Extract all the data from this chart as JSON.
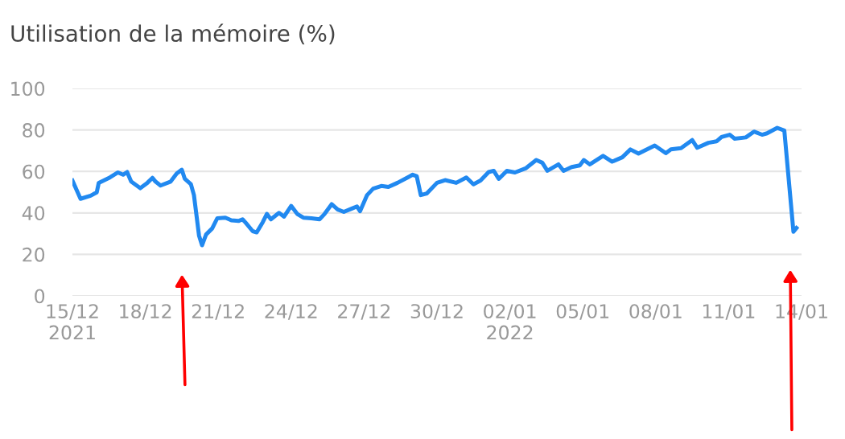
{
  "chart_data": {
    "type": "line",
    "title": "Utilisation de la mémoire (%)",
    "x": [
      "2021-12-15T00:00",
      "2021-12-15T08:00",
      "2021-12-15T18:00",
      "2021-12-16T00:00",
      "2021-12-16T02:00",
      "2021-12-16T13:00",
      "2021-12-16T21:00",
      "2021-12-17T02:00",
      "2021-12-17T06:00",
      "2021-12-17T10:00",
      "2021-12-17T19:00",
      "2021-12-18T02:00",
      "2021-12-18T07:00",
      "2021-12-18T10:00",
      "2021-12-18T15:00",
      "2021-12-19T01:00",
      "2021-12-19T07:00",
      "2021-12-19T12:00",
      "2021-12-19T15:00",
      "2021-12-19T21:00",
      "2021-12-20T00:00",
      "2021-12-20T05:00",
      "2021-12-20T08:00",
      "2021-12-20T12:00",
      "2021-12-20T18:00",
      "2021-12-20T23:00",
      "2021-12-21T07:00",
      "2021-12-21T13:00",
      "2021-12-21T20:00",
      "2021-12-22T00:00",
      "2021-12-22T03:00",
      "2021-12-22T10:00",
      "2021-12-22T14:00",
      "2021-12-22T20:00",
      "2021-12-23T00:00",
      "2021-12-23T04:00",
      "2021-12-23T12:00",
      "2021-12-23T17:00",
      "2021-12-24T00:00",
      "2021-12-24T06:00",
      "2021-12-24T12:00",
      "2021-12-24T20:00",
      "2021-12-25T04:00",
      "2021-12-25T09:00",
      "2021-12-25T16:00",
      "2021-12-25T22:00",
      "2021-12-26T04:00",
      "2021-12-26T12:00",
      "2021-12-26T17:00",
      "2021-12-26T20:00",
      "2021-12-27T03:00",
      "2021-12-27T09:00",
      "2021-12-27T17:00",
      "2021-12-28T00:00",
      "2021-12-28T09:00",
      "2021-12-28T19:00",
      "2021-12-29T00:00",
      "2021-12-29T04:00",
      "2021-12-29T08:00",
      "2021-12-29T14:00",
      "2021-12-30T00:00",
      "2021-12-30T08:00",
      "2021-12-30T19:00",
      "2021-12-31T05:00",
      "2021-12-31T12:00",
      "2021-12-31T19:00",
      "2022-01-01T03:00",
      "2022-01-01T08:00",
      "2022-01-01T13:00",
      "2022-01-01T21:00",
      "2022-01-02T05:00",
      "2022-01-02T16:00",
      "2022-01-03T02:00",
      "2022-01-03T08:00",
      "2022-01-03T13:00",
      "2022-01-04T00:00",
      "2022-01-04T05:00",
      "2022-01-04T13:00",
      "2022-01-04T21:00",
      "2022-01-05T01:00",
      "2022-01-05T07:00",
      "2022-01-05T20:00",
      "2022-01-06T05:00",
      "2022-01-06T15:00",
      "2022-01-06T23:00",
      "2022-01-07T07:00",
      "2022-01-07T23:00",
      "2022-01-08T10:00",
      "2022-01-08T15:00",
      "2022-01-09T01:00",
      "2022-01-09T12:00",
      "2022-01-09T17:00",
      "2022-01-10T04:00",
      "2022-01-10T12:00",
      "2022-01-10T17:00",
      "2022-01-11T01:00",
      "2022-01-11T06:00",
      "2022-01-11T17:00",
      "2022-01-12T01:00",
      "2022-01-12T09:00",
      "2022-01-12T14:00",
      "2022-01-13T00:00",
      "2022-01-13T07:00",
      "2022-01-13T16:00",
      "2022-01-13T19:00"
    ],
    "series": [
      {
        "color": "#2189f0",
        "values": [
          55.6,
          46.8,
          48.3,
          49.9,
          54.5,
          57.1,
          59.5,
          58.4,
          59.7,
          55.1,
          51.9,
          54.5,
          56.9,
          55.1,
          53.2,
          55.1,
          59.0,
          60.8,
          56.4,
          53.8,
          48.6,
          29.1,
          24.4,
          29.6,
          32.5,
          37.4,
          37.7,
          36.4,
          36.1,
          36.9,
          35.3,
          31.2,
          30.6,
          35.6,
          39.5,
          36.9,
          40.0,
          38.2,
          43.4,
          39.5,
          37.7,
          37.4,
          36.9,
          39.5,
          44.2,
          41.6,
          40.5,
          42.1,
          43.1,
          40.8,
          48.6,
          51.7,
          53.0,
          52.5,
          54.5,
          57.1,
          58.4,
          57.7,
          48.6,
          49.4,
          54.5,
          55.8,
          54.5,
          57.1,
          53.8,
          55.6,
          59.7,
          60.3,
          56.4,
          60.3,
          59.5,
          61.6,
          65.5,
          64.2,
          60.3,
          63.4,
          60.3,
          62.1,
          62.9,
          65.5,
          63.4,
          67.5,
          64.7,
          66.8,
          70.6,
          68.6,
          72.5,
          68.8,
          70.6,
          71.2,
          75.1,
          71.4,
          73.8,
          74.5,
          76.6,
          77.7,
          75.8,
          76.4,
          79.2,
          77.7,
          78.4,
          81.0,
          79.7,
          30.9,
          32.7
        ]
      }
    ],
    "xlim": [
      "2021-12-15",
      "2022-01-14"
    ],
    "xticks": [
      {
        "value": "2021-12-15",
        "label": "15/12\n2021"
      },
      {
        "value": "2021-12-18",
        "label": "18/12"
      },
      {
        "value": "2021-12-21",
        "label": "21/12"
      },
      {
        "value": "2021-12-24",
        "label": "24/12"
      },
      {
        "value": "2021-12-27",
        "label": "27/12"
      },
      {
        "value": "2021-12-30",
        "label": "30/12"
      },
      {
        "value": "2022-01-02",
        "label": "02/01\n2022"
      },
      {
        "value": "2022-01-05",
        "label": "05/01"
      },
      {
        "value": "2022-01-08",
        "label": "08/01"
      },
      {
        "value": "2022-01-11",
        "label": "11/01"
      },
      {
        "value": "2022-01-14",
        "label": "14/01"
      }
    ],
    "ylim": [
      0,
      100
    ],
    "yticks": [
      0,
      20,
      40,
      60,
      80,
      100
    ],
    "grid": "y",
    "marker": "none",
    "line_style": "solid"
  }
}
